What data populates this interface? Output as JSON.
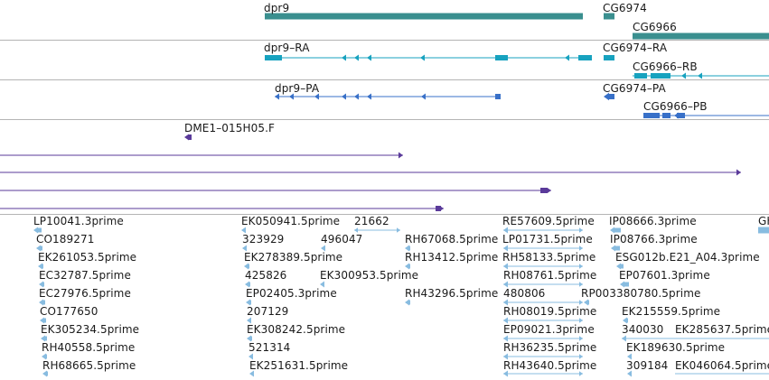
{
  "colors": {
    "gene": "#3a8f8f",
    "transcript": "#17a2bf",
    "protein": "#3870c8",
    "clone": "#5a3a9a",
    "est": "#88bce0",
    "divider": "#b4b4b4"
  },
  "tracks": {
    "genes": [
      {
        "name": "dpr9",
        "label": "dpr9"
      },
      {
        "name": "cg6974",
        "label": "CG6974"
      },
      {
        "name": "cg6966",
        "label": "CG6966"
      }
    ],
    "transcripts": [
      {
        "name": "dpr9-ra",
        "label": "dpr9–RA"
      },
      {
        "name": "cg6974-ra",
        "label": "CG6974–RA"
      },
      {
        "name": "cg6966-rb",
        "label": "CG6966–RB"
      }
    ],
    "proteins": [
      {
        "name": "dpr9-pa",
        "label": "dpr9–PA"
      },
      {
        "name": "cg6974-pa",
        "label": "CG6974–PA"
      },
      {
        "name": "cg6966-pb",
        "label": "CG6966–PB"
      }
    ],
    "clones": {
      "label": "DME1–015H05.F"
    },
    "ests": [
      "LP10041.3prime",
      "CO189271",
      "EK261053.5prime",
      "EC32787.5prime",
      "EC27976.5prime",
      "CO177650",
      "EK305234.5prime",
      "RH40558.5prime",
      "RH68665.5prime",
      "EK050941.5prime",
      "21662",
      "323929",
      "496047",
      "RH67068.5prime",
      "EK278389.5prime",
      "RH13412.5prime",
      "425826",
      "EK300953.5prime",
      "EP02405.3prime",
      "RH43296.5prime",
      "207129",
      "EK308242.5prime",
      "521314",
      "EK251631.5prime",
      "RE57609.5prime",
      "IP08666.3prime",
      "LP01731.5prime",
      "IP08766.3prime",
      "RH58133.5prime",
      "ESG012b.E21_A04.3prime",
      "RH08761.5prime",
      "EP07601.3prime",
      "480806",
      "RP003380780.5prime",
      "RH08019.5prime",
      "EK215559.5prime",
      "EP09021.3prime",
      "340030",
      "EK285637.5prime",
      "RH36235.5prime",
      "EK189630.5prime",
      "RH43640.5prime",
      "309184",
      "EK046064.5prime",
      "GH"
    ]
  }
}
